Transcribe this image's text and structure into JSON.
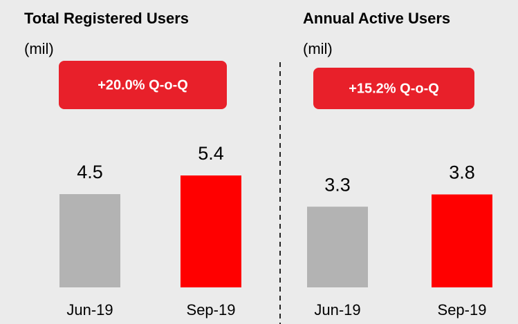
{
  "chart_data": [
    {
      "type": "bar",
      "title": "Total Registered Users",
      "subtitle": "(mil)",
      "annotation": "+20.0% Q-o-Q",
      "categories": [
        "Jun-19",
        "Sep-19"
      ],
      "values": [
        4.5,
        5.4
      ],
      "colors": [
        "#b3b3b3",
        "#ff0000"
      ]
    },
    {
      "type": "bar",
      "title": "Annual Active Users",
      "subtitle": "(mil)",
      "annotation": "+15.2% Q-o-Q",
      "categories": [
        "Jun-19",
        "Sep-19"
      ],
      "values": [
        3.3,
        3.8
      ],
      "colors": [
        "#b3b3b3",
        "#ff0000"
      ]
    }
  ]
}
